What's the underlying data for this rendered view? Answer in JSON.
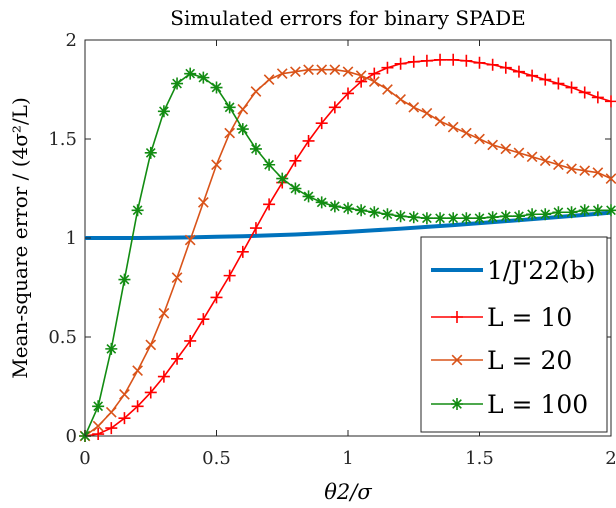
{
  "chart_data": {
    "type": "line",
    "title": "Simulated errors for binary SPADE",
    "xlabel": "θ2/σ",
    "ylabel": "Mean-square error / (4σ²/L)",
    "xlim": [
      0,
      2
    ],
    "ylim": [
      0,
      2
    ],
    "xticks": [
      "0",
      "0.5",
      "1",
      "1.5",
      "2"
    ],
    "yticks": [
      "0",
      "0.5",
      "1",
      "1.5",
      "2"
    ],
    "legend_position": "bottom-right",
    "series": [
      {
        "name": "1/J'22(b)",
        "color": "#0072bd",
        "marker": "none",
        "x": [
          0,
          0.1,
          0.2,
          0.3,
          0.4,
          0.5,
          0.6,
          0.7,
          0.8,
          0.9,
          1.0,
          1.1,
          1.2,
          1.3,
          1.4,
          1.5,
          1.6,
          1.7,
          1.8,
          1.9,
          2.0
        ],
        "values": [
          1.0,
          1.0,
          1.0,
          1.001,
          1.003,
          1.006,
          1.009,
          1.013,
          1.018,
          1.024,
          1.031,
          1.039,
          1.047,
          1.056,
          1.065,
          1.075,
          1.085,
          1.095,
          1.106,
          1.117,
          1.128
        ]
      },
      {
        "name": "L = 10",
        "color": "#ff0000",
        "marker": "plus",
        "x": [
          0,
          0.05,
          0.1,
          0.15,
          0.2,
          0.25,
          0.3,
          0.35,
          0.4,
          0.45,
          0.5,
          0.55,
          0.6,
          0.65,
          0.7,
          0.75,
          0.8,
          0.85,
          0.9,
          0.95,
          1.0,
          1.05,
          1.1,
          1.15,
          1.2,
          1.25,
          1.3,
          1.35,
          1.4,
          1.45,
          1.5,
          1.55,
          1.6,
          1.65,
          1.7,
          1.75,
          1.8,
          1.85,
          1.9,
          1.95,
          2.0
        ],
        "values": [
          0.0,
          0.01,
          0.04,
          0.09,
          0.15,
          0.22,
          0.3,
          0.39,
          0.48,
          0.59,
          0.7,
          0.81,
          0.93,
          1.05,
          1.17,
          1.28,
          1.39,
          1.49,
          1.58,
          1.66,
          1.73,
          1.79,
          1.83,
          1.86,
          1.88,
          1.89,
          1.895,
          1.9,
          1.9,
          1.895,
          1.885,
          1.875,
          1.86,
          1.84,
          1.82,
          1.8,
          1.78,
          1.76,
          1.735,
          1.71,
          1.69
        ]
      },
      {
        "name": "L = 20",
        "color": "#d95319",
        "marker": "cross",
        "x": [
          0,
          0.05,
          0.1,
          0.15,
          0.2,
          0.25,
          0.3,
          0.35,
          0.4,
          0.45,
          0.5,
          0.55,
          0.6,
          0.65,
          0.7,
          0.75,
          0.8,
          0.85,
          0.9,
          0.95,
          1.0,
          1.05,
          1.1,
          1.15,
          1.2,
          1.25,
          1.3,
          1.35,
          1.4,
          1.45,
          1.5,
          1.55,
          1.6,
          1.65,
          1.7,
          1.75,
          1.8,
          1.85,
          1.9,
          1.95,
          2.0
        ],
        "values": [
          0.0,
          0.05,
          0.12,
          0.21,
          0.33,
          0.46,
          0.62,
          0.8,
          0.99,
          1.18,
          1.37,
          1.53,
          1.65,
          1.74,
          1.8,
          1.83,
          1.84,
          1.85,
          1.85,
          1.85,
          1.84,
          1.82,
          1.79,
          1.75,
          1.7,
          1.66,
          1.63,
          1.59,
          1.56,
          1.53,
          1.5,
          1.47,
          1.45,
          1.43,
          1.41,
          1.39,
          1.37,
          1.35,
          1.34,
          1.33,
          1.3
        ]
      },
      {
        "name": "L = 100",
        "color": "#128c12",
        "marker": "asterisk",
        "x": [
          0,
          0.05,
          0.1,
          0.15,
          0.2,
          0.25,
          0.3,
          0.35,
          0.4,
          0.45,
          0.5,
          0.55,
          0.6,
          0.65,
          0.7,
          0.75,
          0.8,
          0.85,
          0.9,
          0.95,
          1.0,
          1.05,
          1.1,
          1.15,
          1.2,
          1.25,
          1.3,
          1.35,
          1.4,
          1.45,
          1.5,
          1.55,
          1.6,
          1.65,
          1.7,
          1.75,
          1.8,
          1.85,
          1.9,
          1.95,
          2.0
        ],
        "values": [
          0.0,
          0.15,
          0.44,
          0.79,
          1.14,
          1.43,
          1.64,
          1.78,
          1.83,
          1.81,
          1.76,
          1.66,
          1.55,
          1.45,
          1.37,
          1.3,
          1.25,
          1.21,
          1.18,
          1.16,
          1.15,
          1.14,
          1.13,
          1.12,
          1.11,
          1.105,
          1.1,
          1.1,
          1.1,
          1.1,
          1.1,
          1.105,
          1.11,
          1.11,
          1.12,
          1.12,
          1.13,
          1.13,
          1.14,
          1.14,
          1.14
        ]
      }
    ]
  }
}
